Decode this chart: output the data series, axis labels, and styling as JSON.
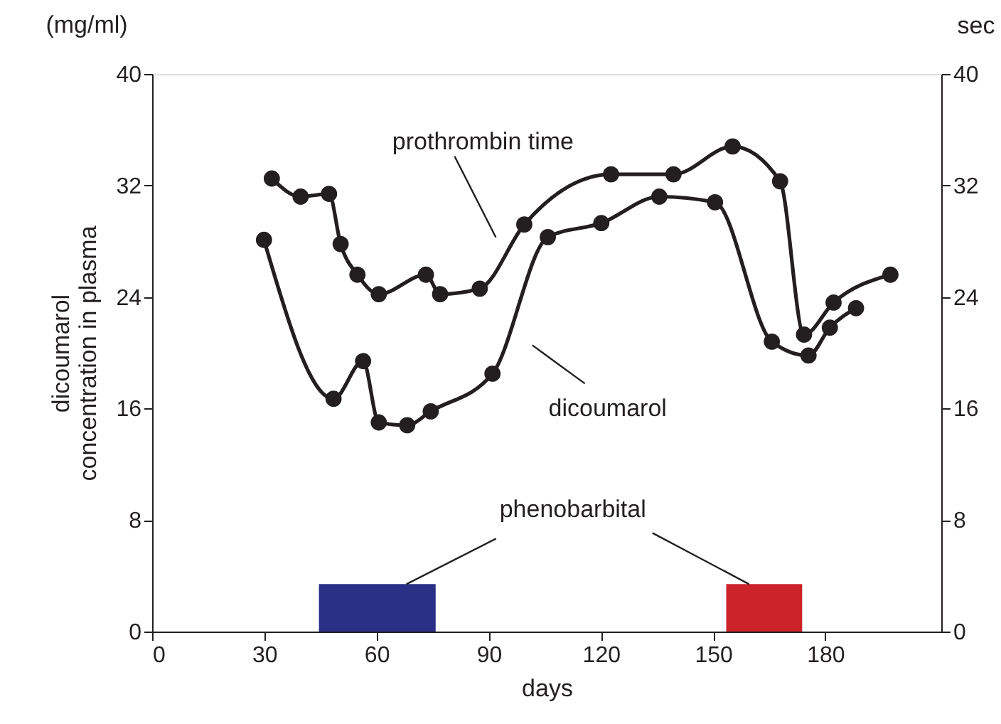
{
  "chart_data": {
    "type": "line",
    "xlabel": "days",
    "ylabel": "dicoumarol concentration in plasma",
    "y2label": "sec",
    "annotations": [
      "(mg/ml)",
      {
        "text": "phenobarbital",
        "x": 68,
        "y": 3.4
      }
    ],
    "xlim": [
      0,
      211
    ],
    "xticks": [
      0,
      30,
      60,
      90,
      120,
      150,
      180
    ],
    "ylim": [
      0,
      40
    ],
    "yticks": [
      0,
      8,
      16,
      24,
      32,
      40
    ],
    "y2lim": [
      0,
      40
    ],
    "y2ticks": [
      0,
      8,
      16,
      24,
      32,
      40
    ],
    "marker": "circle",
    "line_style": "solid",
    "grid": false,
    "series": [
      {
        "name": "prothrombin time",
        "color": "#231f20",
        "x": [
          32.0,
          39.7,
          47.3,
          50.4,
          54.9,
          60.6,
          73.2,
          77.0,
          87.6,
          99.5,
          122.7,
          139.4,
          155.2,
          167.9,
          174.3,
          182.2,
          197.4
        ],
        "values": [
          32.5,
          31.2,
          31.4,
          27.8,
          25.6,
          24.2,
          25.6,
          24.2,
          24.6,
          29.2,
          32.8,
          32.8,
          34.8,
          32.3,
          21.3,
          23.6,
          25.6
        ]
      },
      {
        "name": "dicoumarol",
        "color": "#231f20",
        "x": [
          29.9,
          48.5,
          56.4,
          60.6,
          68.2,
          74.5,
          91.0,
          105.8,
          120.1,
          135.6,
          150.5,
          165.7,
          175.5,
          181.2,
          188.2
        ],
        "values": [
          28.1,
          16.7,
          19.4,
          15.0,
          14.8,
          15.8,
          18.5,
          28.3,
          29.3,
          31.2,
          30.8,
          20.8,
          19.8,
          21.8,
          23.2
        ]
      }
    ],
    "bands": [
      {
        "axis": "x",
        "from": 44.6,
        "to": 75.8,
        "color": "#2b3087"
      },
      {
        "axis": "x",
        "from": 153.5,
        "to": 173.8,
        "color": "#cc2229"
      }
    ]
  }
}
